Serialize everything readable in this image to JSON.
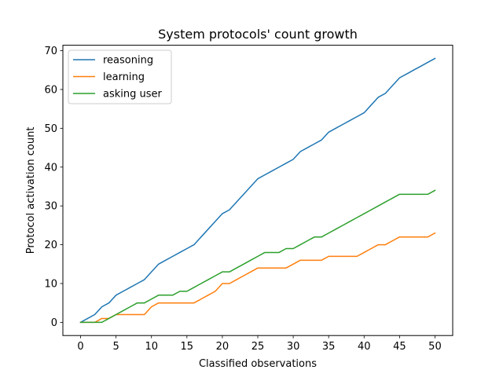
{
  "chart_data": {
    "type": "line",
    "title": "System protocols' count growth",
    "xlabel": "Classified observations",
    "ylabel": "Protocol activation count",
    "xlim": [
      -2.5,
      52.5
    ],
    "ylim": [
      -3.4,
      71.4
    ],
    "xticks": [
      0,
      5,
      10,
      15,
      20,
      25,
      30,
      35,
      40,
      45,
      50
    ],
    "yticks": [
      0,
      10,
      20,
      30,
      40,
      50,
      60,
      70
    ],
    "grid": false,
    "legend_position": "top-left",
    "x": [
      0,
      1,
      2,
      3,
      4,
      5,
      6,
      7,
      8,
      9,
      10,
      11,
      12,
      13,
      14,
      15,
      16,
      17,
      18,
      19,
      20,
      21,
      22,
      23,
      24,
      25,
      26,
      27,
      28,
      29,
      30,
      31,
      32,
      33,
      34,
      35,
      36,
      37,
      38,
      39,
      40,
      41,
      42,
      43,
      44,
      45,
      46,
      47,
      48,
      49,
      50
    ],
    "series": [
      {
        "name": "reasoning",
        "color": "#1f77b4",
        "values": [
          0,
          1,
          2,
          4,
          5,
          7,
          8,
          9,
          10,
          11,
          13,
          15,
          16,
          17,
          18,
          19,
          20,
          22,
          24,
          26,
          28,
          29,
          31,
          33,
          35,
          37,
          38,
          39,
          40,
          41,
          42,
          44,
          45,
          46,
          47,
          49,
          50,
          51,
          52,
          53,
          54,
          56,
          58,
          59,
          61,
          63,
          64,
          65,
          66,
          67,
          68
        ]
      },
      {
        "name": "learning",
        "color": "#ff7f0e",
        "values": [
          0,
          0,
          0,
          1,
          1,
          2,
          2,
          2,
          2,
          2,
          4,
          5,
          5,
          5,
          5,
          5,
          5,
          6,
          7,
          8,
          10,
          10,
          11,
          12,
          13,
          14,
          14,
          14,
          14,
          14,
          15,
          16,
          16,
          16,
          16,
          17,
          17,
          17,
          17,
          17,
          18,
          19,
          20,
          20,
          21,
          22,
          22,
          22,
          22,
          22,
          23
        ]
      },
      {
        "name": "asking user",
        "color": "#2ca02c",
        "values": [
          0,
          0,
          0,
          0,
          1,
          2,
          3,
          4,
          5,
          5,
          6,
          7,
          7,
          7,
          8,
          8,
          9,
          10,
          11,
          12,
          13,
          13,
          14,
          15,
          16,
          17,
          18,
          18,
          18,
          19,
          19,
          20,
          21,
          22,
          22,
          23,
          24,
          25,
          26,
          27,
          28,
          29,
          30,
          31,
          32,
          33,
          33,
          33,
          33,
          33,
          34
        ]
      }
    ]
  }
}
